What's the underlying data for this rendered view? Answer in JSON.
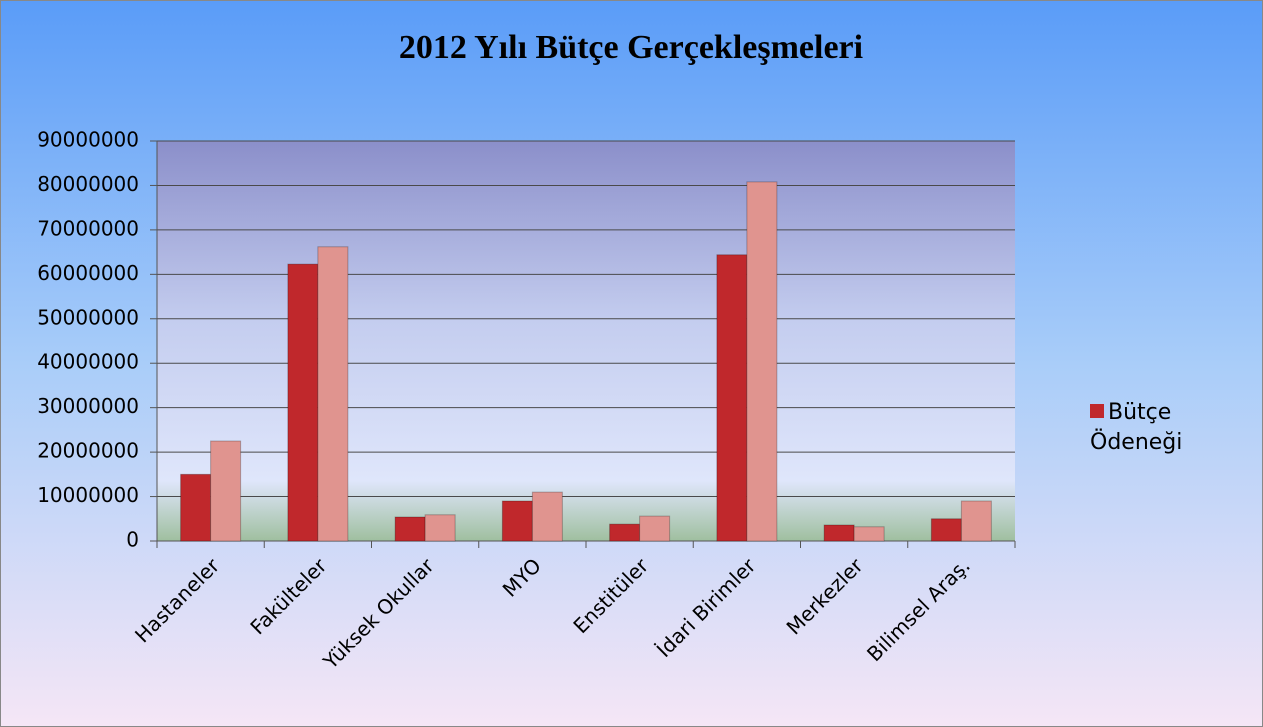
{
  "chart_data": {
    "type": "bar",
    "title": "2012 Yılı Bütçe Gerçekleşmeleri",
    "categories": [
      "Hastaneler",
      "Fakülteler",
      "Yüksek Okullar",
      "MYO",
      "Enstitüler",
      "İdari Birimler",
      "Merkezler",
      "Bilimsel Araş."
    ],
    "series": [
      {
        "name": "Bütçe Ödeneği",
        "color": "#c0282c",
        "values": [
          15000000,
          62300000,
          5400000,
          9000000,
          3800000,
          64400000,
          3600000,
          5000000
        ]
      },
      {
        "color": "#e0948f",
        "values": [
          22500000,
          66200000,
          5900000,
          11000000,
          5600000,
          80800000,
          3200000,
          9000000
        ]
      }
    ],
    "ylim": [
      0,
      90000000
    ],
    "yticks": [
      0,
      10000000,
      20000000,
      30000000,
      40000000,
      50000000,
      60000000,
      70000000,
      80000000,
      90000000
    ],
    "grid": true,
    "legend": "right"
  }
}
